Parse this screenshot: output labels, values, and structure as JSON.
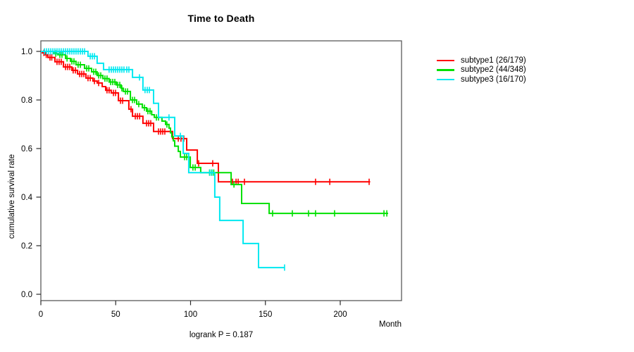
{
  "chart_data": {
    "type": "line",
    "subtype": "kaplan-meier-step",
    "title": "Time to Death",
    "xlabel": "Month",
    "ylabel": "cumulative survival rate",
    "annotation": "logrank P = 0.187",
    "legend_position": "right-outside",
    "axes": {
      "x_ticks": [
        0,
        50,
        100,
        150,
        200
      ],
      "y_ticks": [
        0.0,
        0.2,
        0.4,
        0.6,
        0.8,
        1.0
      ],
      "xlim": [
        0,
        241
      ],
      "ylim": [
        0,
        1.04
      ],
      "grid": false
    },
    "series": [
      {
        "id": "subtype1",
        "name": "subtype1 (26/179)",
        "color": "#ff0000",
        "end_month": 220,
        "steps": [
          [
            0,
            1.0
          ],
          [
            1.0,
            0.994
          ],
          [
            2.8,
            0.986
          ],
          [
            4.7,
            0.975
          ],
          [
            9.4,
            0.957
          ],
          [
            15.1,
            0.936
          ],
          [
            20.7,
            0.922
          ],
          [
            24.5,
            0.907
          ],
          [
            30.1,
            0.89
          ],
          [
            34.8,
            0.878
          ],
          [
            37.6,
            0.87
          ],
          [
            41.0,
            0.855
          ],
          [
            43.3,
            0.84
          ],
          [
            47.0,
            0.829
          ],
          [
            51.8,
            0.797
          ],
          [
            58.8,
            0.762
          ],
          [
            61.2,
            0.733
          ],
          [
            68.2,
            0.704
          ],
          [
            75.3,
            0.67
          ],
          [
            88.0,
            0.641
          ],
          [
            97.4,
            0.594
          ],
          [
            104.5,
            0.539
          ],
          [
            118.6,
            0.463
          ]
        ],
        "censor_marks": [
          [
            2.0,
            0.994
          ],
          [
            3.6,
            0.986
          ],
          [
            6.1,
            0.975
          ],
          [
            7.3,
            0.975
          ],
          [
            10.8,
            0.957
          ],
          [
            12.2,
            0.957
          ],
          [
            13.6,
            0.957
          ],
          [
            16.5,
            0.936
          ],
          [
            17.9,
            0.936
          ],
          [
            19.3,
            0.936
          ],
          [
            21.6,
            0.922
          ],
          [
            23.1,
            0.922
          ],
          [
            25.9,
            0.907
          ],
          [
            27.3,
            0.907
          ],
          [
            28.7,
            0.907
          ],
          [
            31.5,
            0.89
          ],
          [
            33.0,
            0.89
          ],
          [
            35.8,
            0.878
          ],
          [
            38.6,
            0.87
          ],
          [
            44.2,
            0.84
          ],
          [
            45.6,
            0.84
          ],
          [
            48.5,
            0.829
          ],
          [
            49.9,
            0.829
          ],
          [
            53.2,
            0.797
          ],
          [
            54.6,
            0.797
          ],
          [
            60.2,
            0.762
          ],
          [
            63.1,
            0.733
          ],
          [
            64.5,
            0.733
          ],
          [
            66.0,
            0.733
          ],
          [
            70.6,
            0.704
          ],
          [
            72.0,
            0.704
          ],
          [
            73.4,
            0.704
          ],
          [
            78.6,
            0.67
          ],
          [
            80.0,
            0.67
          ],
          [
            81.4,
            0.67
          ],
          [
            82.8,
            0.67
          ],
          [
            91.8,
            0.641
          ],
          [
            93.6,
            0.641
          ],
          [
            95.5,
            0.641
          ],
          [
            105.4,
            0.539
          ],
          [
            114.8,
            0.539
          ],
          [
            128.0,
            0.463
          ],
          [
            130.4,
            0.463
          ],
          [
            131.8,
            0.463
          ],
          [
            136.0,
            0.463
          ],
          [
            183.5,
            0.463
          ],
          [
            193.0,
            0.463
          ],
          [
            219.3,
            0.463
          ]
        ]
      },
      {
        "id": "subtype2",
        "name": "subtype2 (44/348)",
        "color": "#00e000",
        "end_month": 232,
        "steps": [
          [
            0,
            1.0
          ],
          [
            8.9,
            0.991
          ],
          [
            11.3,
            0.986
          ],
          [
            16.5,
            0.971
          ],
          [
            19.8,
            0.959
          ],
          [
            23.5,
            0.945
          ],
          [
            29.2,
            0.93
          ],
          [
            33.9,
            0.916
          ],
          [
            37.6,
            0.901
          ],
          [
            41.4,
            0.888
          ],
          [
            45.6,
            0.874
          ],
          [
            50.4,
            0.862
          ],
          [
            53.6,
            0.848
          ],
          [
            55.1,
            0.835
          ],
          [
            59.8,
            0.8
          ],
          [
            64.0,
            0.783
          ],
          [
            67.8,
            0.768
          ],
          [
            70.6,
            0.754
          ],
          [
            74.0,
            0.739
          ],
          [
            75.8,
            0.728
          ],
          [
            80.9,
            0.713
          ],
          [
            83.3,
            0.699
          ],
          [
            85.6,
            0.684
          ],
          [
            86.6,
            0.665
          ],
          [
            87.5,
            0.648
          ],
          [
            88.5,
            0.632
          ],
          [
            89.4,
            0.61
          ],
          [
            91.8,
            0.588
          ],
          [
            93.2,
            0.565
          ],
          [
            99.8,
            0.522
          ],
          [
            106.8,
            0.501
          ],
          [
            127.1,
            0.452
          ],
          [
            134.1,
            0.374
          ],
          [
            152.5,
            0.333
          ]
        ],
        "censor_marks": [
          [
            10.0,
            0.991
          ],
          [
            12.7,
            0.986
          ],
          [
            14.1,
            0.986
          ],
          [
            17.5,
            0.971
          ],
          [
            20.7,
            0.959
          ],
          [
            22.1,
            0.959
          ],
          [
            24.9,
            0.945
          ],
          [
            26.4,
            0.945
          ],
          [
            30.6,
            0.93
          ],
          [
            32.0,
            0.93
          ],
          [
            35.3,
            0.916
          ],
          [
            36.7,
            0.916
          ],
          [
            38.6,
            0.901
          ],
          [
            40.0,
            0.901
          ],
          [
            42.8,
            0.888
          ],
          [
            44.2,
            0.888
          ],
          [
            46.6,
            0.874
          ],
          [
            48.0,
            0.874
          ],
          [
            49.4,
            0.874
          ],
          [
            51.3,
            0.862
          ],
          [
            52.7,
            0.862
          ],
          [
            54.1,
            0.848
          ],
          [
            56.5,
            0.835
          ],
          [
            57.9,
            0.835
          ],
          [
            61.2,
            0.8
          ],
          [
            62.6,
            0.8
          ],
          [
            65.4,
            0.783
          ],
          [
            69.2,
            0.768
          ],
          [
            71.5,
            0.754
          ],
          [
            72.9,
            0.754
          ],
          [
            77.2,
            0.728
          ],
          [
            78.6,
            0.728
          ],
          [
            84.2,
            0.699
          ],
          [
            96.0,
            0.565
          ],
          [
            97.4,
            0.565
          ],
          [
            101.6,
            0.522
          ],
          [
            103.1,
            0.522
          ],
          [
            112.7,
            0.501
          ],
          [
            114.1,
            0.501
          ],
          [
            115.5,
            0.501
          ],
          [
            129.0,
            0.452
          ],
          [
            154.8,
            0.333
          ],
          [
            168.0,
            0.333
          ],
          [
            178.8,
            0.333
          ],
          [
            183.5,
            0.333
          ],
          [
            196.2,
            0.333
          ],
          [
            229.2,
            0.333
          ],
          [
            231.1,
            0.333
          ]
        ]
      },
      {
        "id": "subtype3",
        "name": "subtype3 (16/170)",
        "color": "#00e8f0",
        "end_month": 163,
        "steps": [
          [
            0,
            1.0
          ],
          [
            31.5,
            0.98
          ],
          [
            37.6,
            0.951
          ],
          [
            41.9,
            0.925
          ],
          [
            61.2,
            0.893
          ],
          [
            68.2,
            0.841
          ],
          [
            75.3,
            0.786
          ],
          [
            78.6,
            0.728
          ],
          [
            89.4,
            0.652
          ],
          [
            95.1,
            0.58
          ],
          [
            98.8,
            0.501
          ],
          [
            116.2,
            0.4
          ],
          [
            119.5,
            0.304
          ],
          [
            135.1,
            0.209
          ],
          [
            145.4,
            0.11
          ]
        ],
        "censor_marks": [
          [
            2.4,
            1.0
          ],
          [
            3.8,
            1.0
          ],
          [
            5.2,
            1.0
          ],
          [
            6.6,
            1.0
          ],
          [
            8.0,
            1.0
          ],
          [
            9.4,
            1.0
          ],
          [
            10.8,
            1.0
          ],
          [
            12.2,
            1.0
          ],
          [
            13.6,
            1.0
          ],
          [
            15.1,
            1.0
          ],
          [
            16.5,
            1.0
          ],
          [
            17.9,
            1.0
          ],
          [
            19.3,
            1.0
          ],
          [
            20.7,
            1.0
          ],
          [
            22.1,
            1.0
          ],
          [
            23.5,
            1.0
          ],
          [
            24.9,
            1.0
          ],
          [
            26.4,
            1.0
          ],
          [
            27.8,
            1.0
          ],
          [
            29.2,
            1.0
          ],
          [
            33.0,
            0.98
          ],
          [
            34.4,
            0.98
          ],
          [
            35.8,
            0.98
          ],
          [
            45.6,
            0.925
          ],
          [
            47.1,
            0.925
          ],
          [
            48.5,
            0.925
          ],
          [
            49.9,
            0.925
          ],
          [
            51.3,
            0.925
          ],
          [
            52.7,
            0.925
          ],
          [
            54.1,
            0.925
          ],
          [
            55.5,
            0.925
          ],
          [
            57.4,
            0.925
          ],
          [
            58.8,
            0.925
          ],
          [
            65.9,
            0.893
          ],
          [
            69.6,
            0.841
          ],
          [
            71.1,
            0.841
          ],
          [
            72.5,
            0.841
          ],
          [
            85.6,
            0.728
          ],
          [
            93.2,
            0.652
          ],
          [
            112.9,
            0.501
          ],
          [
            114.4,
            0.501
          ],
          [
            162.8,
            0.11
          ]
        ]
      }
    ]
  }
}
